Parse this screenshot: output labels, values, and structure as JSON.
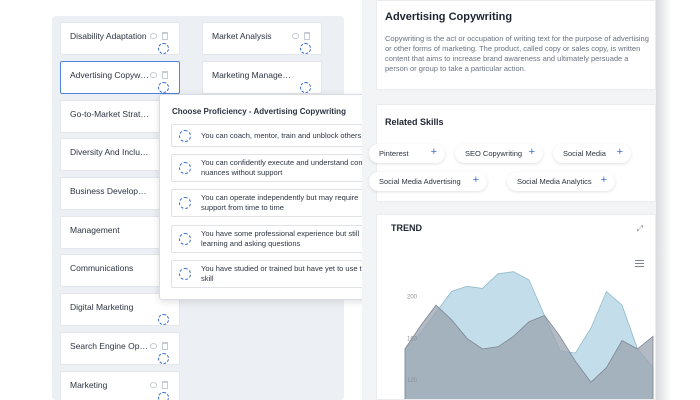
{
  "skills_left": [
    {
      "label": "Disability Adaptation"
    },
    {
      "label": "Advertising Copywriting",
      "selected": true
    },
    {
      "label": "Go-to-Market Strategy"
    },
    {
      "label": "Diversity And Inclusion"
    },
    {
      "label": "Business Development"
    },
    {
      "label": "Management"
    },
    {
      "label": "Communications"
    },
    {
      "label": "Digital Marketing"
    },
    {
      "label": "Search Engine Optimization"
    },
    {
      "label": "Marketing"
    }
  ],
  "skills_right": [
    {
      "label": "Market Analysis"
    },
    {
      "label": "Marketing Management"
    }
  ],
  "modal": {
    "title": "Choose Proficiency - Advertising Copywriting",
    "options": [
      "You can coach, mentor, train and unblock others",
      "You can confidently execute and understand complex nuances without support",
      "You can operate independently but may require support from time to time",
      "You have some professional experience but still learning and asking questions",
      "You have studied or trained but have yet to use this skill"
    ]
  },
  "detail": {
    "title": "Advertising Copywriting",
    "description": "Copywriting is the act or occupation of writing text for the purpose of advertising or other forms of marketing. The product, called copy or sales copy, is written content that aims to increase brand awareness and ultimately persuade a person or group to take a particular action."
  },
  "related": {
    "title": "Related Skills",
    "chips": [
      "Pinterest",
      "SEO Copywriting",
      "Social Media",
      "Social Media Advertising",
      "Social Media Analytics"
    ],
    "plus": "+"
  },
  "trend": {
    "title": "TREND",
    "expand_glyph": "⤢",
    "y_ticks": [
      "200",
      "160",
      "120"
    ],
    "colors": {
      "series_a": "#b8d8e6",
      "series_b": "#9aa3af",
      "accent": "#3a6fd0"
    }
  },
  "chart_data": {
    "type": "area",
    "x": [
      0,
      1,
      2,
      3,
      4,
      5,
      6,
      7,
      8,
      9,
      10,
      11,
      12,
      13,
      14,
      15,
      16
    ],
    "series": [
      {
        "values": [
          150,
          165,
          185,
          205,
          210,
          208,
          222,
          224,
          216,
          182,
          148,
          146,
          170,
          205,
          192,
          150,
          132
        ]
      },
      {
        "values": [
          150,
          172,
          192,
          178,
          160,
          150,
          152,
          162,
          176,
          182,
          162,
          138,
          118,
          132,
          158,
          150,
          162
        ]
      }
    ],
    "ylim": [
      100,
      240
    ]
  }
}
